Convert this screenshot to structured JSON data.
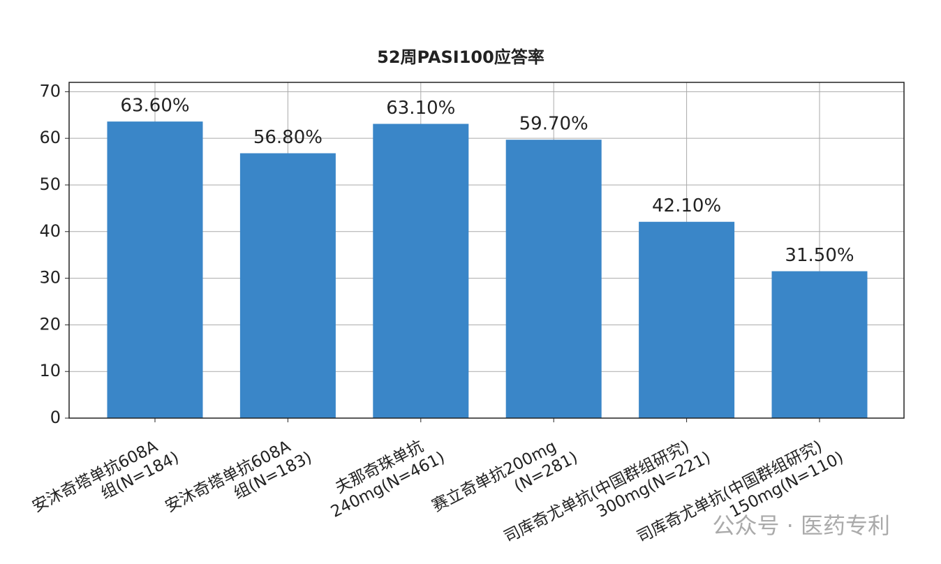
{
  "chart_data": {
    "type": "bar",
    "title": "52周PASI100应答率",
    "categories": [
      "安沐奇塔单抗608A\n组(N=184)",
      "安沐奇塔单抗608A\n组(N=183)",
      "夫那奇珠单抗\n240mg(N=461)",
      "赛立奇单抗200mg\n(N=281)",
      "司库奇尤单抗(中国群组研究)\n300mg(N=221)",
      "司库奇尤单抗(中国群组研究)\n150mg(N=110)"
    ],
    "values": [
      63.6,
      56.8,
      63.1,
      59.7,
      42.1,
      31.5
    ],
    "value_labels": [
      "63.60%",
      "56.80%",
      "63.10%",
      "59.70%",
      "42.10%",
      "31.50%"
    ],
    "color": "#3a86c8",
    "ylim": [
      0,
      72
    ],
    "yticks": [
      0,
      10,
      20,
      30,
      40,
      50,
      60,
      70
    ],
    "grid": true,
    "watermark": "公众号 · 医药专利"
  }
}
